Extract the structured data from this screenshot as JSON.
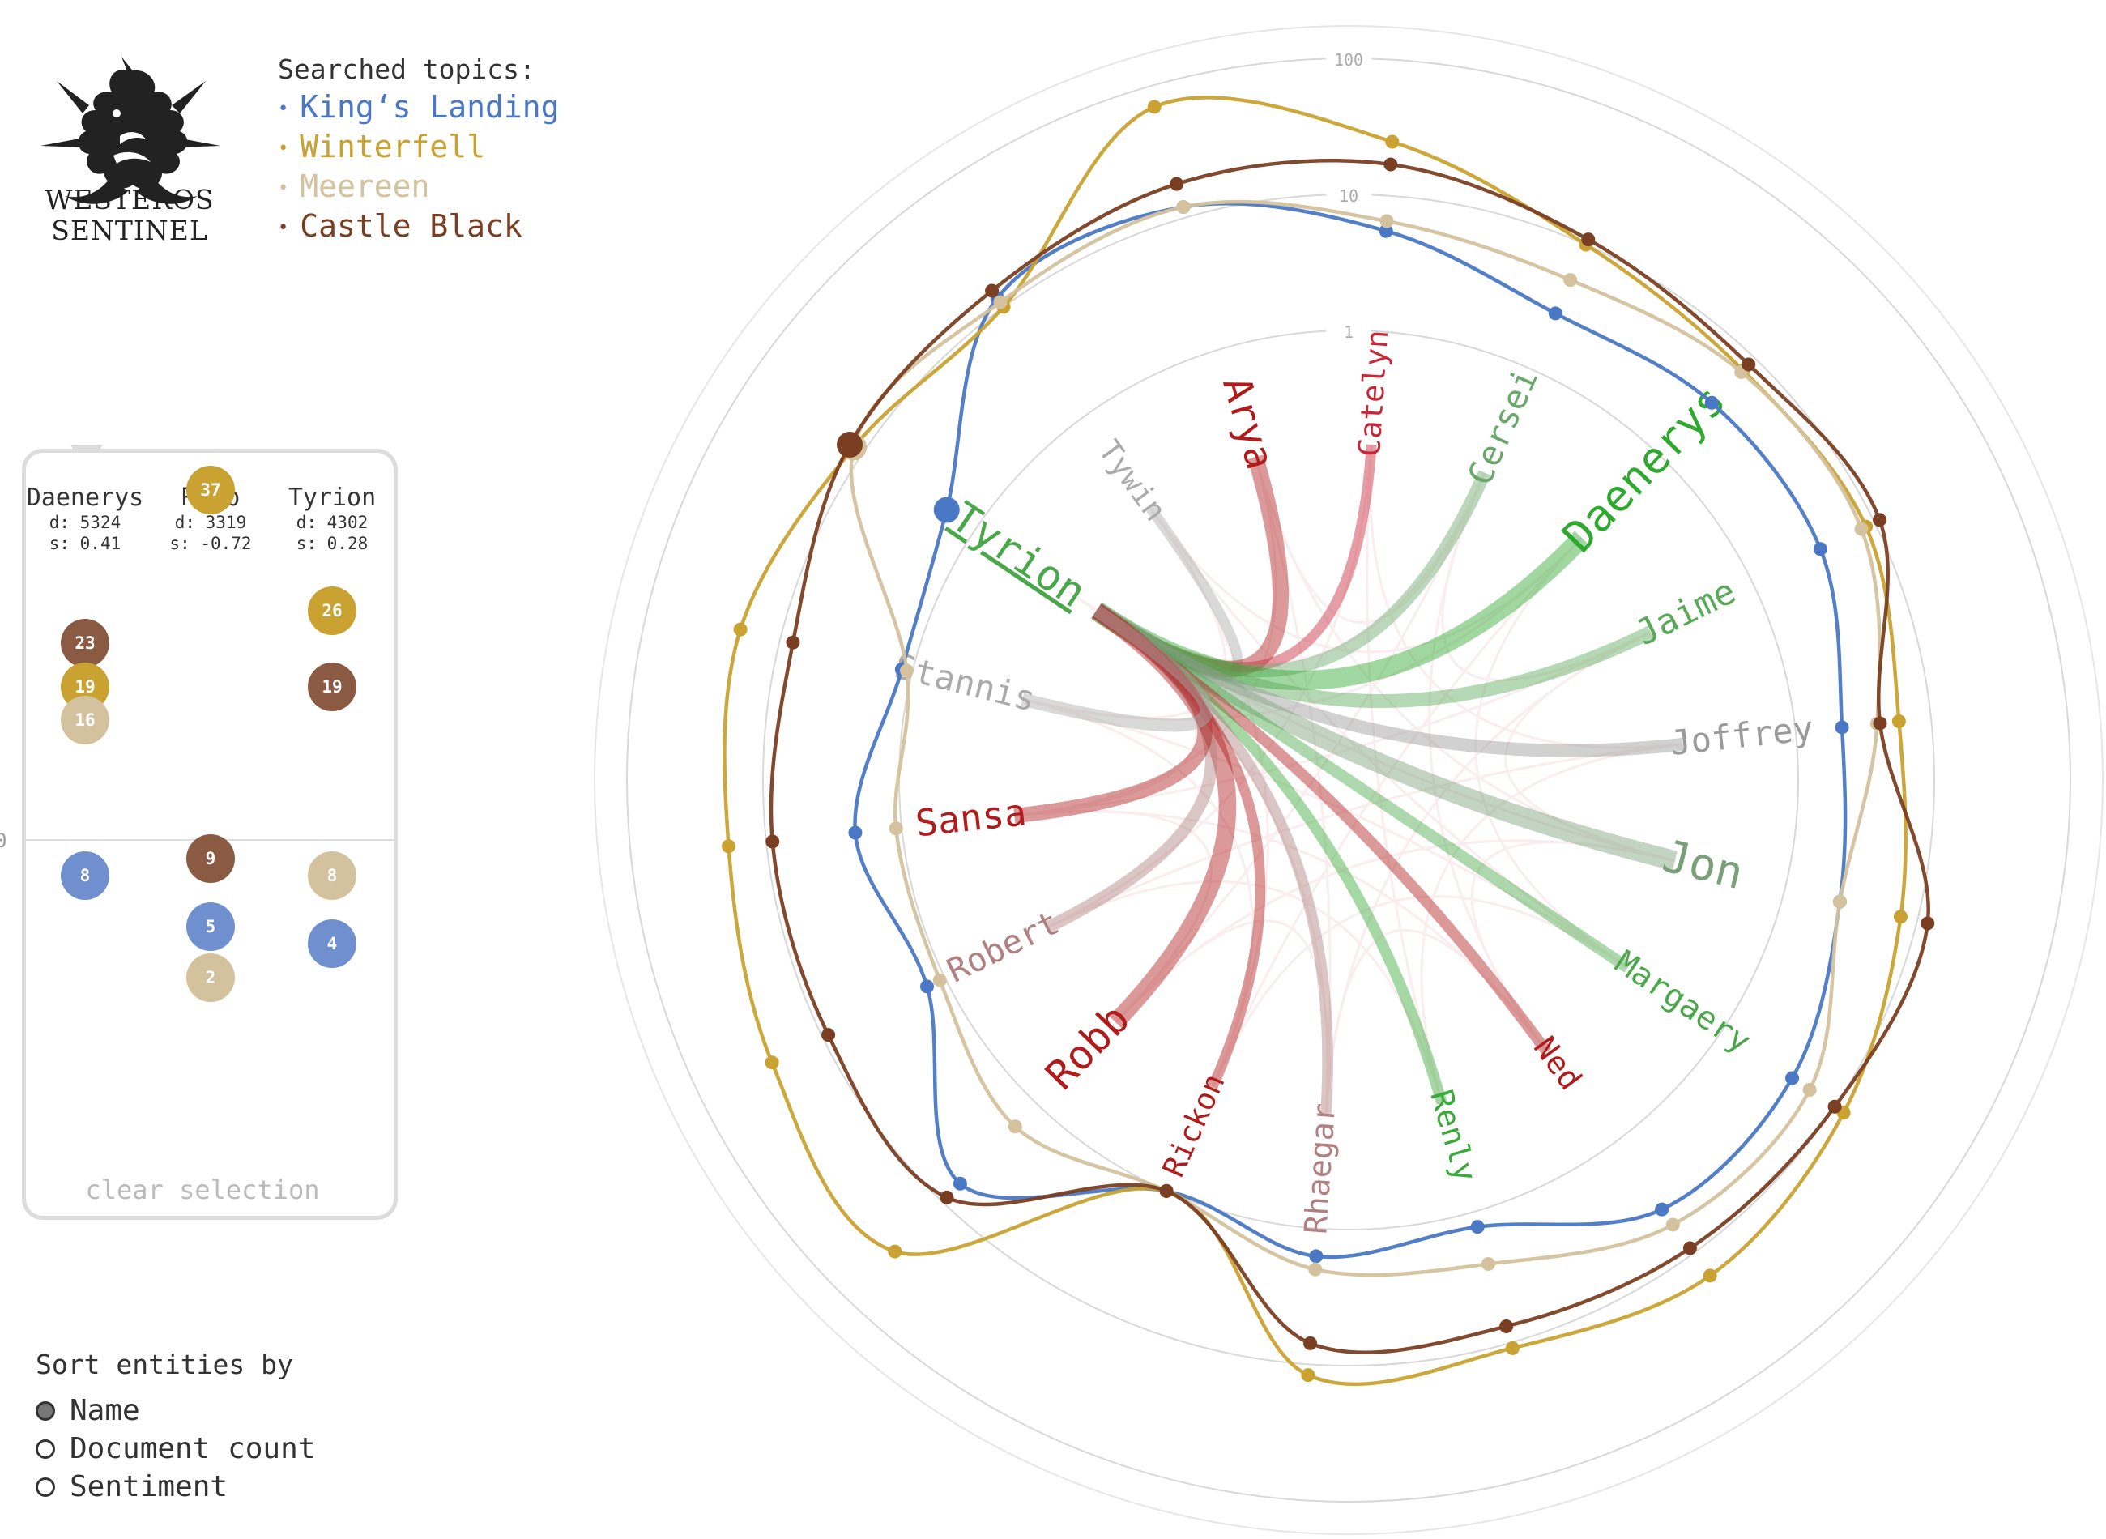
{
  "logo": {
    "line1": "WESTEROS",
    "line2": "SENTINEL"
  },
  "topics": {
    "label": "Searched topics:",
    "items": [
      {
        "name": "King‘s Landing",
        "color": "#4a78c4"
      },
      {
        "name": "Winterfell",
        "color": "#c9a232"
      },
      {
        "name": "Meereen",
        "color": "#d4c29e"
      },
      {
        "name": "Castle Black",
        "color": "#7a3f22"
      }
    ]
  },
  "panel": {
    "zero_label": "0",
    "columns": [
      {
        "name": "Daenerys",
        "d": "d: 5324",
        "s": "s: 0.41",
        "bubbles": [
          {
            "value": 23,
            "color": "#8b5a43"
          },
          {
            "value": 19,
            "color": "#c9a232"
          },
          {
            "value": 16,
            "color": "#d4c29e"
          },
          {
            "value": 8,
            "color": "#6f8fcf"
          }
        ]
      },
      {
        "name": "Robb",
        "d": "d: 3319",
        "s": "s: -0.72",
        "bubbles": [
          {
            "value": 37,
            "color": "#c9a232"
          },
          {
            "value": 9,
            "color": "#8b5a43"
          },
          {
            "value": 5,
            "color": "#6f8fcf"
          },
          {
            "value": 2,
            "color": "#d4c29e"
          }
        ]
      },
      {
        "name": "Tyrion",
        "d": "d: 4302",
        "s": "s: 0.28",
        "bubbles": [
          {
            "value": 26,
            "color": "#c9a232"
          },
          {
            "value": 19,
            "color": "#8b5a43"
          },
          {
            "value": 8,
            "color": "#d4c29e"
          },
          {
            "value": 4,
            "color": "#6f8fcf"
          }
        ]
      }
    ],
    "clear_label": "clear selection"
  },
  "sort": {
    "label": "Sort entities by",
    "options": [
      {
        "label": "Name",
        "selected": true
      },
      {
        "label": "Document count",
        "selected": false
      },
      {
        "label": "Sentiment",
        "selected": false
      }
    ]
  },
  "chart_data": {
    "type": "radar",
    "scale": "log",
    "ring_labels": [
      "1",
      "10",
      "100"
    ],
    "entities": [
      {
        "name": "Tywin",
        "color": "#aaaaaa",
        "weight": 0.55
      },
      {
        "name": "Arya",
        "color": "#b01c1c",
        "weight": 1.0
      },
      {
        "name": "Catelyn",
        "color": "#c8283a",
        "weight": 0.55
      },
      {
        "name": "Cersei",
        "color": "#6aa86a",
        "weight": 0.75
      },
      {
        "name": "Daenerys",
        "color": "#2ea82e",
        "weight": 1.25
      },
      {
        "name": "Jaime",
        "color": "#5aa85a",
        "weight": 0.8
      },
      {
        "name": "Joffrey",
        "color": "#9a9a9a",
        "weight": 0.75
      },
      {
        "name": "Jon",
        "color": "#7aa07a",
        "weight": 1.3
      },
      {
        "name": "Margaery",
        "color": "#4aa84a",
        "weight": 0.65
      },
      {
        "name": "Ned",
        "color": "#b01c1c",
        "weight": 0.6
      },
      {
        "name": "Renly",
        "color": "#3aa83a",
        "weight": 0.6
      },
      {
        "name": "Rhaegar",
        "color": "#b08080",
        "weight": 0.6
      },
      {
        "name": "Rickon",
        "color": "#b01c1c",
        "weight": 0.55
      },
      {
        "name": "Robb",
        "color": "#b01c1c",
        "weight": 1.1
      },
      {
        "name": "Robert",
        "color": "#b08080",
        "weight": 0.7
      },
      {
        "name": "Sansa",
        "color": "#b01c1c",
        "weight": 0.9
      },
      {
        "name": "Stannis",
        "color": "#aaaaaa",
        "weight": 0.75
      },
      {
        "name": "Tyrion",
        "color": "#4aa84a",
        "weight": 1.15
      }
    ],
    "selected_entity": "Tyrion",
    "series": [
      {
        "name": "King‘s Landing",
        "color": "#4a78c4",
        "values": [
          12,
          12,
          5.5,
          2.8,
          3.5,
          3.6,
          2.2,
          2.6,
          4.2,
          4.0,
          1.3,
          1.6,
          1.0,
          6.5,
          1.4,
          2.2,
          1.2,
          1.8
        ]
      },
      {
        "name": "Winterfell",
        "color": "#c9a232",
        "values": [
          10,
          70,
          25,
          10,
          7.5,
          8.5,
          5.8,
          7.5,
          12,
          16,
          11,
          12,
          1.0,
          32,
          26,
          19,
          20,
          12
        ]
      },
      {
        "name": "Meereen",
        "color": "#d4c29e",
        "values": [
          11,
          12,
          6.5,
          5.2,
          7.2,
          7.8,
          4.0,
          2.6,
          6.0,
          5.5,
          2.5,
          2.0,
          1.0,
          1.7,
          1.1,
          1.1,
          1.1,
          12
        ]
      },
      {
        "name": "Castle Black",
        "color": "#7a3f22",
        "values": [
          14,
          18,
          17,
          11,
          8.6,
          11,
          4.2,
          12,
          10,
          9.0,
          7.5,
          7.0,
          1.0,
          9.0,
          9.0,
          9.0,
          8.0,
          13
        ]
      }
    ],
    "highlight_markers": [
      "Tyrion"
    ]
  }
}
